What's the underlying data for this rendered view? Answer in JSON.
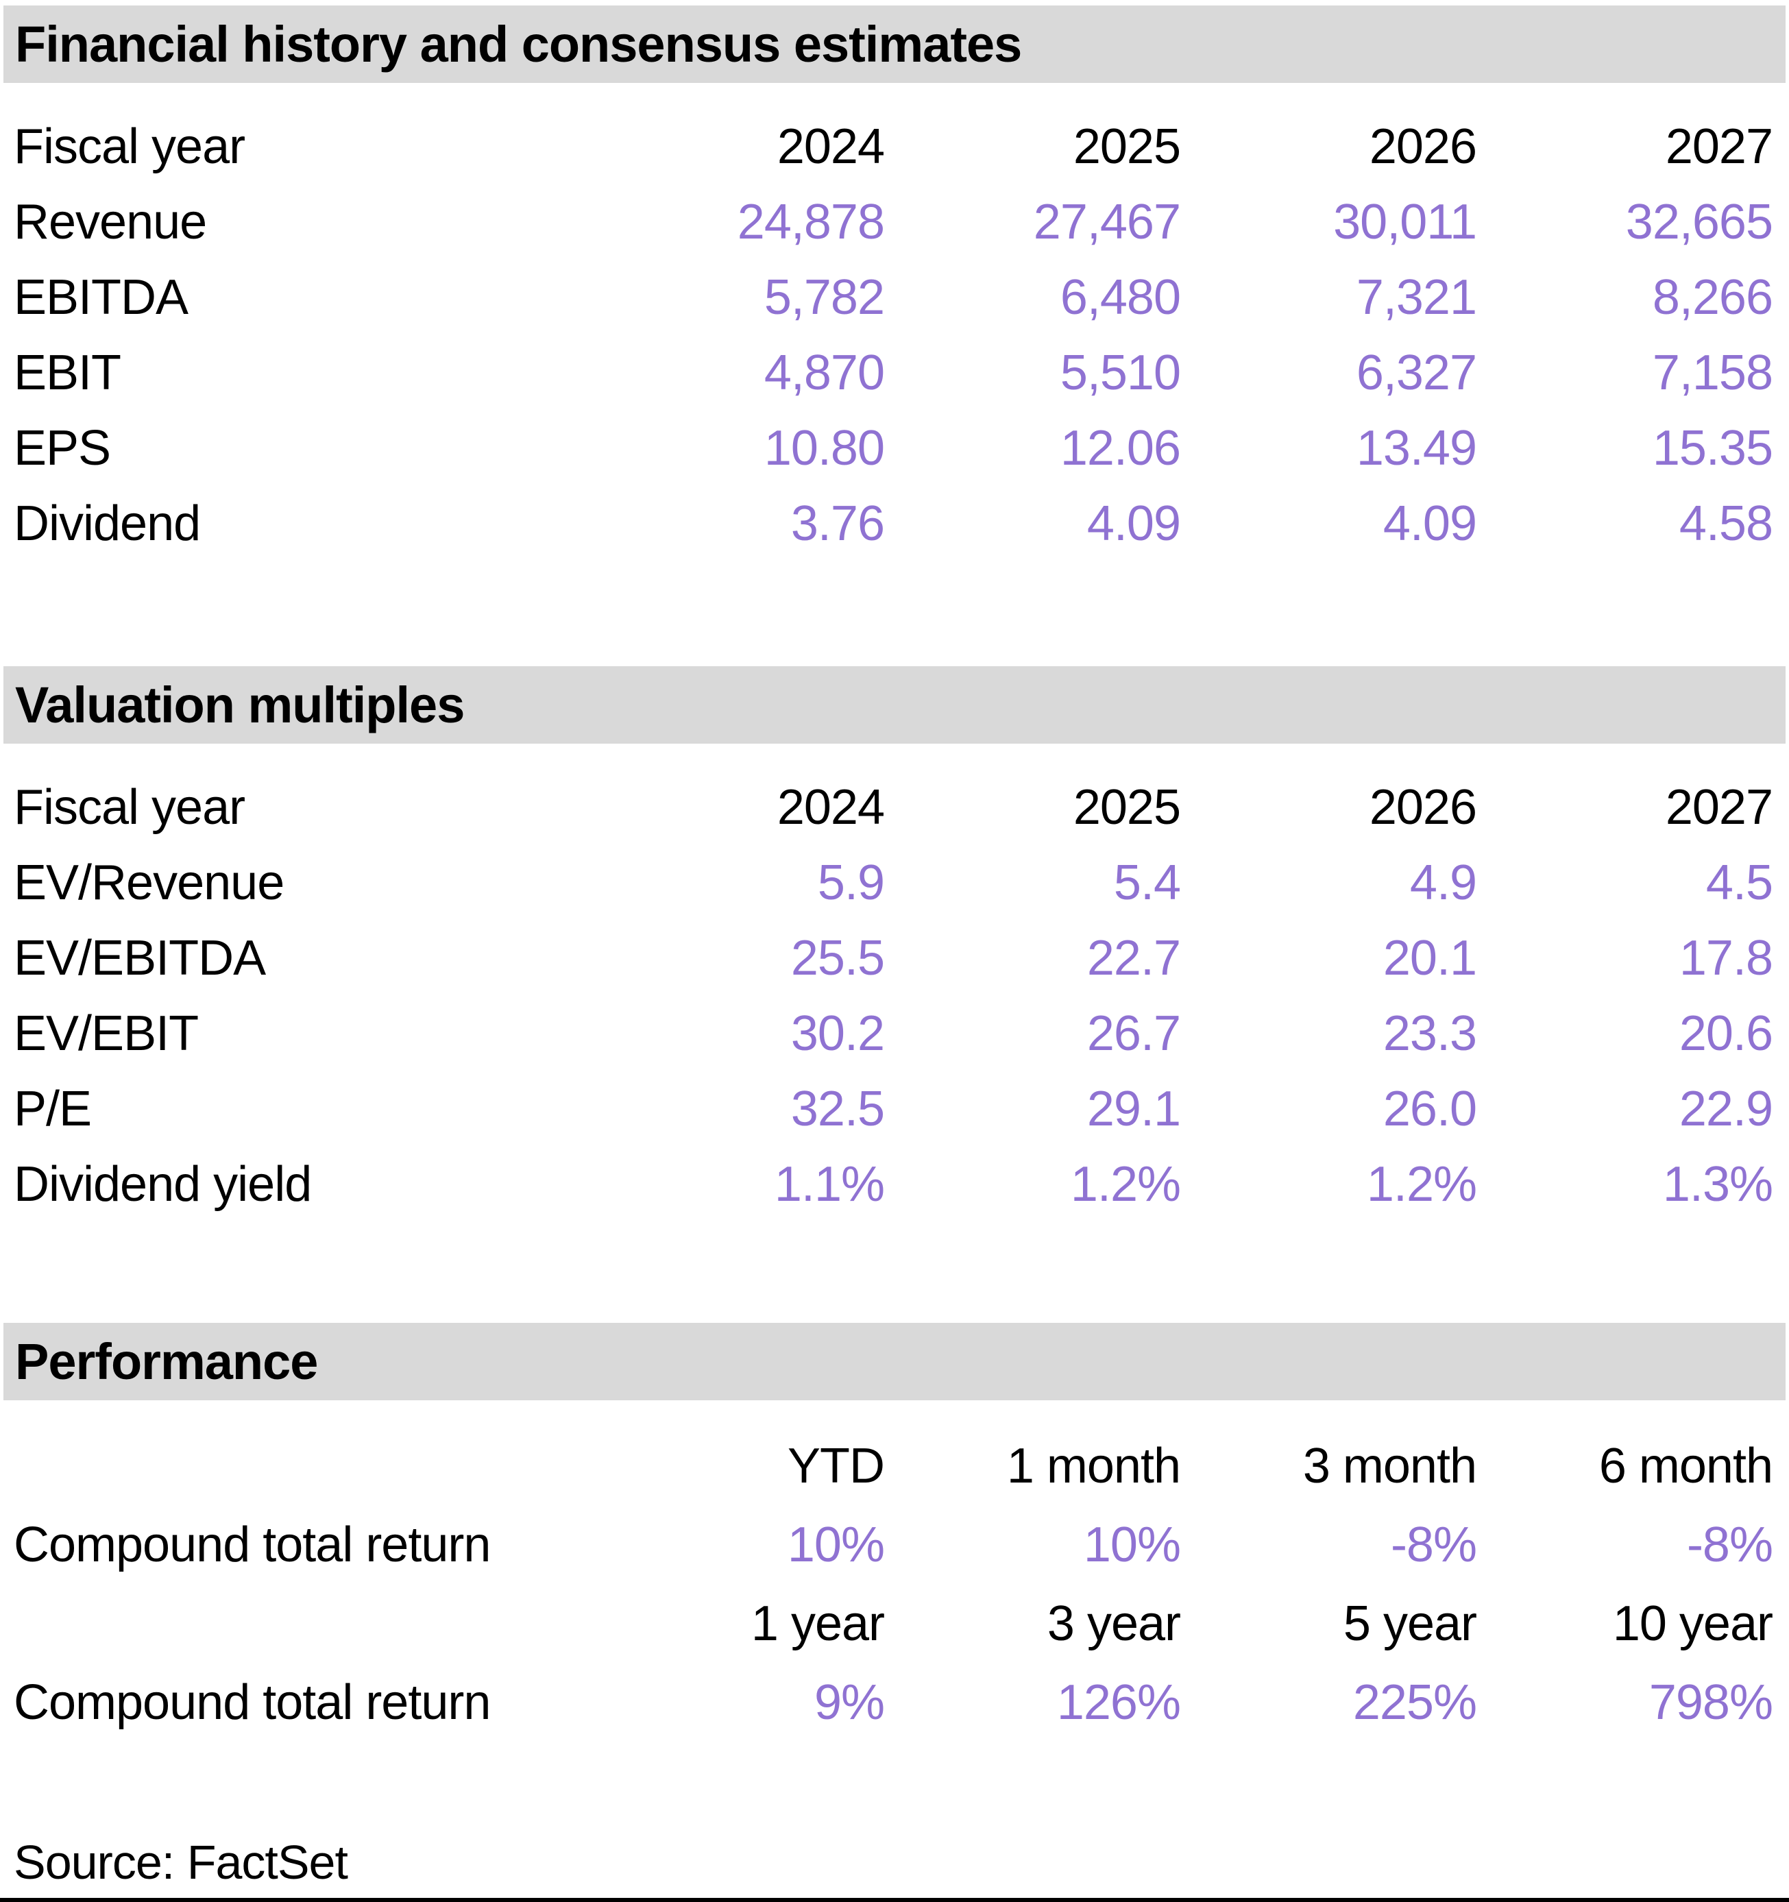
{
  "colors": {
    "accent": "#8F72D2",
    "header_bg": "#D9D9D9",
    "text": "#000000"
  },
  "sections": {
    "financial": {
      "title": "Financial history and consensus estimates",
      "fiscal_year_label": "Fiscal year",
      "years": [
        "2024",
        "2025",
        "2026",
        "2027"
      ],
      "rows": [
        {
          "label": "Revenue",
          "values": [
            "24,878",
            "27,467",
            "30,011",
            "32,665"
          ]
        },
        {
          "label": "EBITDA",
          "values": [
            "5,782",
            "6,480",
            "7,321",
            "8,266"
          ]
        },
        {
          "label": "EBIT",
          "values": [
            "4,870",
            "5,510",
            "6,327",
            "7,158"
          ]
        },
        {
          "label": "EPS",
          "values": [
            "10.80",
            "12.06",
            "13.49",
            "15.35"
          ]
        },
        {
          "label": "Dividend",
          "values": [
            "3.76",
            "4.09",
            "4.09",
            "4.58"
          ]
        }
      ]
    },
    "valuation": {
      "title": "Valuation multiples",
      "fiscal_year_label": "Fiscal year",
      "years": [
        "2024",
        "2025",
        "2026",
        "2027"
      ],
      "rows": [
        {
          "label": "EV/Revenue",
          "values": [
            "5.9",
            "5.4",
            "4.9",
            "4.5"
          ]
        },
        {
          "label": "EV/EBITDA",
          "values": [
            "25.5",
            "22.7",
            "20.1",
            "17.8"
          ]
        },
        {
          "label": "EV/EBIT",
          "values": [
            "30.2",
            "26.7",
            "23.3",
            "20.6"
          ]
        },
        {
          "label": "P/E",
          "values": [
            "32.5",
            "29.1",
            "26.0",
            "22.9"
          ]
        },
        {
          "label": "Dividend yield",
          "values": [
            "1.1%",
            "1.2%",
            "1.2%",
            "1.3%"
          ]
        }
      ]
    },
    "performance": {
      "title": "Performance",
      "period_rows": [
        {
          "headers": [
            "YTD",
            "1 month",
            "3 month",
            "6 month"
          ],
          "label": "Compound total return",
          "values": [
            "10%",
            "10%",
            "-8%",
            "-8%"
          ]
        },
        {
          "headers": [
            "1 year",
            "3 year",
            "5 year",
            "10 year"
          ],
          "label": "Compound total return",
          "values": [
            "9%",
            "126%",
            "225%",
            "798%"
          ]
        }
      ]
    }
  },
  "source": "Source: FactSet"
}
